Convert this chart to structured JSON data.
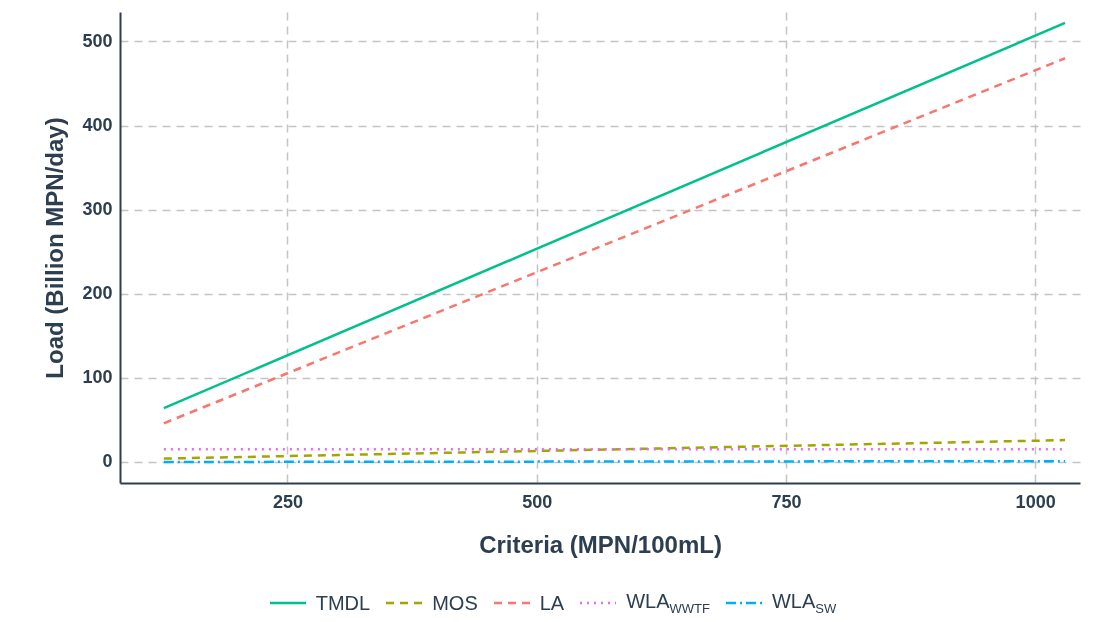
{
  "chart_data": {
    "type": "line",
    "xlabel": "Criteria (MPN/100mL)",
    "ylabel": "Load (Billion MPN/day)",
    "xlim": [
      82,
      1045
    ],
    "ylim": [
      -25,
      535
    ],
    "xticks": [
      250,
      500,
      750,
      1000
    ],
    "yticks": [
      0,
      100,
      200,
      300,
      400,
      500
    ],
    "grid": true,
    "legend": "bottom",
    "x": [
      126,
      1030
    ],
    "series": [
      {
        "name": "TMDL",
        "color": "#00c08b",
        "line_style": "solid",
        "values": [
          64,
          522
        ]
      },
      {
        "name": "MOS",
        "color": "#a3a500",
        "line_style": "dashed",
        "values": [
          4,
          26
        ]
      },
      {
        "name": "LA",
        "color": "#f8766d",
        "line_style": "dashed",
        "values": [
          46,
          480
        ]
      },
      {
        "name": "WLA$_{WWTF}$",
        "color": "#e76bf3",
        "line_style": "dotted",
        "values": [
          15,
          15
        ]
      },
      {
        "name": "WLA$_{SW}$",
        "color": "#00b0f6",
        "line_style": "dashdot",
        "values": [
          0,
          1
        ]
      }
    ]
  }
}
